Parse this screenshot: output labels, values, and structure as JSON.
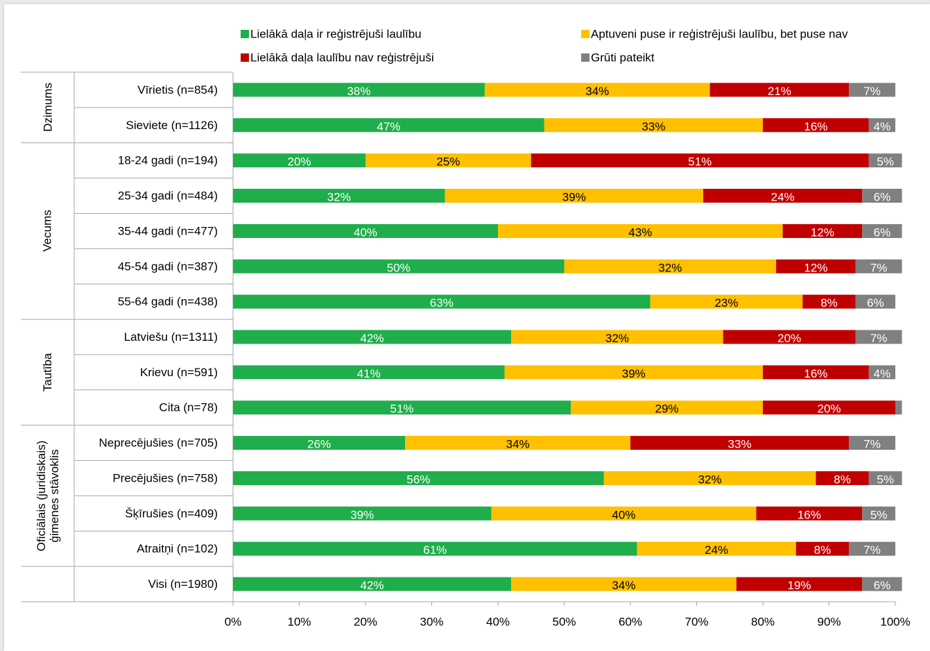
{
  "chart_data": {
    "type": "stacked_bar_horizontal",
    "groups": [
      {
        "label": "Dzimums",
        "categories": [
          "Vīrietis (n=854)",
          "Sieviete (n=1126)"
        ]
      },
      {
        "label": "Vecums",
        "categories": [
          "18-24 gadi (n=194)",
          "25-34 gadi (n=484)",
          "35-44 gadi (n=477)",
          "45-54 gadi (n=387)",
          "55-64 gadi (n=438)"
        ]
      },
      {
        "label": "Tautība",
        "categories": [
          "Latviešu (n=1311)",
          "Krievu (n=591)",
          "Cita (n=78)"
        ]
      },
      {
        "label": "Oficiālais (juridiskais) ģimenes stāvoklis",
        "categories": [
          "Neprecējušies (n=705)",
          "Precējušies (n=758)",
          "Šķīrušies (n=409)",
          "Atraitņi (n=102)"
        ]
      },
      {
        "categories": [
          "Visi (n=1980)"
        ]
      }
    ],
    "series": [
      {
        "name": "Lielākā daļa ir reģistrējuši laulību",
        "color": "#1fae4b",
        "label_color": "#ffffff",
        "values": [
          38,
          47,
          20,
          32,
          40,
          50,
          63,
          42,
          41,
          51,
          26,
          56,
          39,
          61,
          42
        ],
        "value_labels": [
          "38%",
          "47%",
          "20%",
          "32%",
          "40%",
          "50%",
          "63%",
          "42%",
          "41%",
          "51%",
          "26%",
          "56%",
          "39%",
          "61%",
          "42%"
        ]
      },
      {
        "name": "Aptuveni puse ir reģistrējuši laulību, bet puse nav",
        "color": "#ffc000",
        "label_color": "#000000",
        "values": [
          34,
          33,
          25,
          39,
          43,
          32,
          23,
          32,
          39,
          29,
          34,
          32,
          40,
          24,
          34
        ],
        "value_labels": [
          "34%",
          "33%",
          "25%",
          "39%",
          "43%",
          "32%",
          "23%",
          "32%",
          "39%",
          "29%",
          "34%",
          "32%",
          "40%",
          "24%",
          "34%"
        ]
      },
      {
        "name": "Lielākā daļa laulību nav reģistrējuši",
        "color": "#c00000",
        "label_color": "#ffffff",
        "values": [
          21,
          16,
          51,
          24,
          12,
          12,
          8,
          20,
          16,
          20,
          33,
          8,
          16,
          8,
          19
        ],
        "value_labels": [
          "21%",
          "16%",
          "51%",
          "24%",
          "12%",
          "12%",
          "8%",
          "20%",
          "16%",
          "20%",
          "33%",
          "8%",
          "16%",
          "8%",
          "19%"
        ]
      },
      {
        "name": "Grūti pateikt",
        "color": "#808080",
        "label_color": "#ffffff",
        "values": [
          7,
          4,
          5,
          6,
          6,
          7,
          6,
          7,
          4,
          1,
          7,
          5,
          5,
          7,
          6
        ],
        "value_labels": [
          "7%",
          "4%",
          "5%",
          "6%",
          "6%",
          "7%",
          "6%",
          "7%",
          "4%",
          null,
          "7%",
          "5%",
          "5%",
          "7%",
          "6%"
        ]
      }
    ],
    "xlim": [
      0,
      100
    ],
    "xticks": [
      {
        "value": 0,
        "label": "0%"
      },
      {
        "value": 10,
        "label": "10%"
      },
      {
        "value": 20,
        "label": "20%"
      },
      {
        "value": 30,
        "label": "30%"
      },
      {
        "value": 40,
        "label": "40%"
      },
      {
        "value": 50,
        "label": "50%"
      },
      {
        "value": 60,
        "label": "60%"
      },
      {
        "value": 70,
        "label": "70%"
      },
      {
        "value": 80,
        "label": "80%"
      },
      {
        "value": 90,
        "label": "90%"
      },
      {
        "value": 100,
        "label": "100%"
      }
    ],
    "legend": "top"
  }
}
